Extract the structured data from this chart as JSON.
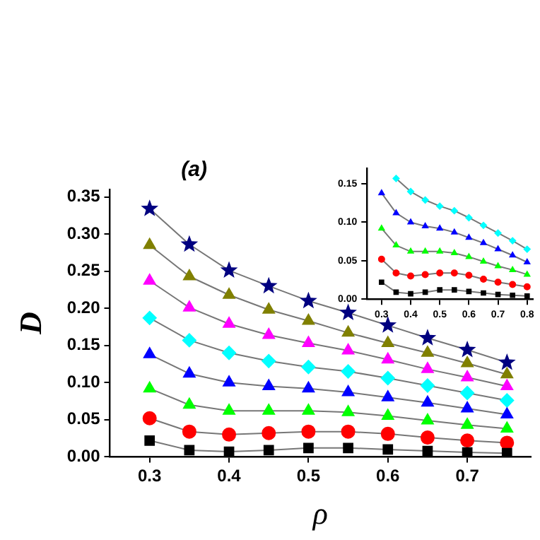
{
  "chart_data": [
    {
      "type": "line",
      "title": "(a)",
      "xlabel": "ρ",
      "ylabel": "D",
      "x": [
        0.3,
        0.35,
        0.4,
        0.45,
        0.5,
        0.55,
        0.6,
        0.65,
        0.7,
        0.75
      ],
      "xlim": [
        0.25,
        0.78
      ],
      "xticks": [
        0.3,
        0.4,
        0.5,
        0.6,
        0.7
      ],
      "ylim": [
        0,
        0.36
      ],
      "yticks": [
        {
          "value": 0,
          "label": "0.00"
        },
        {
          "value": 0.05,
          "label": "0.05"
        },
        {
          "value": 0.1,
          "label": "0.10"
        },
        {
          "value": 0.15,
          "label": "0.15"
        },
        {
          "value": 0.2,
          "label": "0.20"
        },
        {
          "value": 0.25,
          "label": "0.25"
        },
        {
          "value": 0.3,
          "label": "0.30"
        },
        {
          "value": 0.35,
          "label": "0.35"
        }
      ],
      "grid": false,
      "legend": false,
      "series": [
        {
          "color": "#000000",
          "marker": "square",
          "values": [
            0.022,
            0.009,
            0.007,
            0.009,
            0.012,
            0.012,
            0.01,
            0.008,
            0.006,
            0.005
          ]
        },
        {
          "color": "#ff0000",
          "marker": "circle",
          "values": [
            0.052,
            0.034,
            0.03,
            0.032,
            0.034,
            0.034,
            0.031,
            0.026,
            0.022,
            0.019
          ]
        },
        {
          "color": "#00ff00",
          "marker": "triangle",
          "values": [
            0.092,
            0.07,
            0.062,
            0.062,
            0.062,
            0.06,
            0.055,
            0.049,
            0.043,
            0.038
          ]
        },
        {
          "color": "#0000ff",
          "marker": "triangle",
          "values": [
            0.138,
            0.112,
            0.1,
            0.095,
            0.092,
            0.087,
            0.08,
            0.073,
            0.065,
            0.057
          ]
        },
        {
          "color": "#00ffff",
          "marker": "diamond",
          "values": [
            0.187,
            0.157,
            0.14,
            0.129,
            0.121,
            0.115,
            0.106,
            0.096,
            0.086,
            0.076
          ]
        },
        {
          "color": "#ff00ff",
          "marker": "triangle",
          "values": [
            0.237,
            0.201,
            0.179,
            0.164,
            0.153,
            0.143,
            0.131,
            0.118,
            0.107,
            0.095
          ]
        },
        {
          "color": "#808000",
          "marker": "triangle",
          "values": [
            0.285,
            0.243,
            0.218,
            0.198,
            0.183,
            0.167,
            0.153,
            0.14,
            0.126,
            0.111
          ]
        },
        {
          "color": "#000080",
          "marker": "star",
          "values": [
            0.334,
            0.286,
            0.251,
            0.23,
            0.21,
            0.194,
            0.177,
            0.16,
            0.144,
            0.127
          ]
        }
      ]
    },
    {
      "type": "line",
      "x": [
        0.3,
        0.35,
        0.4,
        0.45,
        0.5,
        0.55,
        0.6,
        0.65,
        0.7,
        0.75,
        0.8
      ],
      "xlim": [
        0.25,
        0.82
      ],
      "xticks": [
        0.3,
        0.4,
        0.5,
        0.6,
        0.7,
        0.8
      ],
      "ylim": [
        0,
        0.17
      ],
      "yticks": [
        {
          "value": 0,
          "label": "0.00"
        },
        {
          "value": 0.05,
          "label": "0.05"
        },
        {
          "value": 0.1,
          "label": "0.10"
        },
        {
          "value": 0.15,
          "label": "0.15"
        }
      ],
      "grid": false,
      "legend": false,
      "series": [
        {
          "color": "#000000",
          "marker": "square",
          "values": [
            0.022,
            0.009,
            0.007,
            0.009,
            0.012,
            0.012,
            0.01,
            0.008,
            0.006,
            0.005,
            0.004
          ]
        },
        {
          "color": "#ff0000",
          "marker": "circle",
          "values": [
            0.052,
            0.034,
            0.03,
            0.032,
            0.034,
            0.034,
            0.031,
            0.026,
            0.022,
            0.019,
            0.016
          ]
        },
        {
          "color": "#00ff00",
          "marker": "triangle",
          "values": [
            0.092,
            0.07,
            0.062,
            0.062,
            0.062,
            0.06,
            0.055,
            0.049,
            0.043,
            0.038,
            0.032
          ]
        },
        {
          "color": "#0000ff",
          "marker": "triangle",
          "values": [
            0.138,
            0.112,
            0.1,
            0.095,
            0.092,
            0.087,
            0.08,
            0.073,
            0.065,
            0.057,
            0.048
          ]
        },
        {
          "color": "#00ffff",
          "marker": "diamond",
          "values": [
            null,
            0.157,
            0.14,
            0.129,
            0.121,
            0.115,
            0.106,
            0.096,
            0.086,
            0.076,
            0.065
          ]
        }
      ]
    }
  ]
}
